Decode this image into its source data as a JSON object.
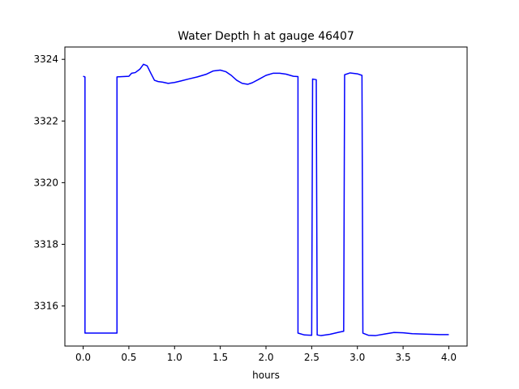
{
  "chart_data": {
    "type": "line",
    "title": "Water Depth h at gauge 46407",
    "xlabel": "hours",
    "ylabel": "",
    "xlim": [
      -0.2,
      4.2
    ],
    "ylim": [
      3314.7,
      3324.4
    ],
    "xticks": [
      0.0,
      0.5,
      1.0,
      1.5,
      2.0,
      2.5,
      3.0,
      3.5,
      4.0
    ],
    "xtick_labels": [
      "0.0",
      "0.5",
      "1.0",
      "1.5",
      "2.0",
      "2.5",
      "3.0",
      "3.5",
      "4.0"
    ],
    "yticks": [
      3316,
      3318,
      3320,
      3322,
      3324
    ],
    "ytick_labels": [
      "3316",
      "3318",
      "3320",
      "3322",
      "3324"
    ],
    "grid": false,
    "series": [
      {
        "color": "#0000ff",
        "x": [
          0.0,
          0.02,
          0.02,
          0.37,
          0.37,
          0.5,
          0.53,
          0.57,
          0.62,
          0.66,
          0.7,
          0.74,
          0.78,
          0.82,
          0.87,
          0.93,
          1.0,
          1.07,
          1.15,
          1.25,
          1.35,
          1.42,
          1.5,
          1.56,
          1.62,
          1.68,
          1.74,
          1.8,
          1.85,
          1.92,
          2.0,
          2.08,
          2.15,
          2.22,
          2.3,
          2.35,
          2.35,
          2.42,
          2.5,
          2.51,
          2.53,
          2.55,
          2.56,
          2.6,
          2.7,
          2.8,
          2.85,
          2.86,
          2.92,
          3.0,
          3.05,
          3.06,
          3.12,
          3.2,
          3.3,
          3.4,
          3.5,
          3.6,
          3.7,
          3.8,
          3.9,
          4.0
        ],
        "y": [
          3323.45,
          3323.43,
          3315.12,
          3315.12,
          3323.43,
          3323.45,
          3323.55,
          3323.57,
          3323.68,
          3323.84,
          3323.79,
          3323.55,
          3323.32,
          3323.28,
          3323.26,
          3323.22,
          3323.25,
          3323.3,
          3323.36,
          3323.43,
          3323.52,
          3323.62,
          3323.65,
          3323.6,
          3323.48,
          3323.32,
          3323.22,
          3323.19,
          3323.24,
          3323.35,
          3323.48,
          3323.55,
          3323.55,
          3323.52,
          3323.45,
          3323.44,
          3315.12,
          3315.06,
          3315.05,
          3323.36,
          3323.35,
          3323.34,
          3315.06,
          3315.04,
          3315.08,
          3315.15,
          3315.18,
          3323.5,
          3323.56,
          3323.53,
          3323.48,
          3315.12,
          3315.05,
          3315.04,
          3315.09,
          3315.14,
          3315.13,
          3315.1,
          3315.09,
          3315.08,
          3315.07,
          3315.07
        ]
      }
    ]
  }
}
